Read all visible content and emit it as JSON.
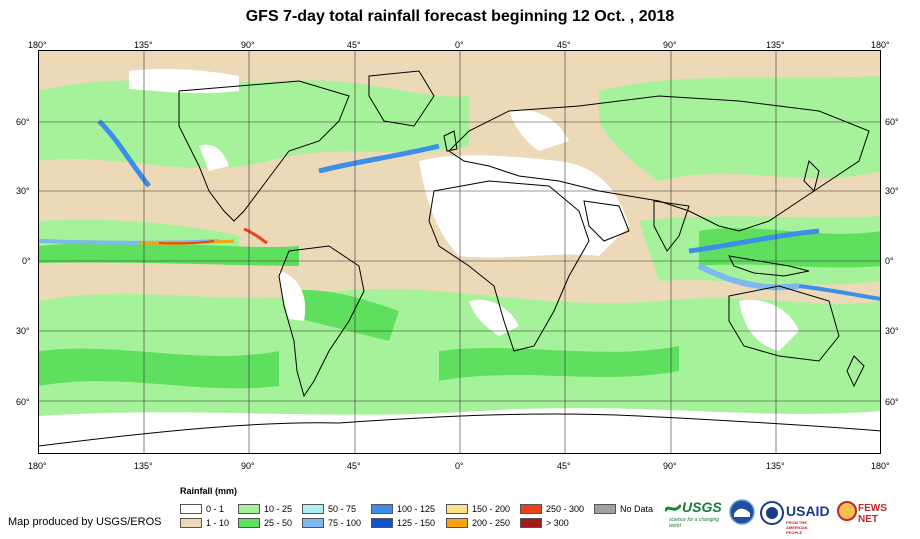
{
  "title": "GFS 7-day total rainfall forecast beginning 12 Oct. , 2018",
  "top_lon_labels": [
    "180°",
    "135°",
    "90°",
    "45°",
    "0°",
    "45°",
    "90°",
    "135°",
    "180°"
  ],
  "bottom_lon_labels": [
    "180°",
    "135°",
    "90°",
    "45°",
    "0°",
    "45°",
    "90°",
    "135°",
    "180°"
  ],
  "lat_labels": [
    "60°",
    "30°",
    "0°",
    "30°",
    "60°"
  ],
  "legend": {
    "title": "Rainfall (mm)",
    "items": [
      {
        "label": "0 - 1",
        "color": "#ffffff"
      },
      {
        "label": "1 - 10",
        "color": "#ecd9b8"
      },
      {
        "label": "10 - 25",
        "color": "#a6f29a"
      },
      {
        "label": "25 - 50",
        "color": "#5ee05e"
      },
      {
        "label": "50 - 75",
        "color": "#aeeeee"
      },
      {
        "label": "75 - 100",
        "color": "#7db8f0"
      },
      {
        "label": "100 - 125",
        "color": "#3c8fe8"
      },
      {
        "label": "125 - 150",
        "color": "#1452c8"
      },
      {
        "label": "150 - 200",
        "color": "#fde389"
      },
      {
        "label": "200 - 250",
        "color": "#f5a40f"
      },
      {
        "label": "250 - 300",
        "color": "#f0401a"
      },
      {
        "label": "> 300",
        "color": "#a01818"
      },
      {
        "label": "No Data",
        "color": "#a0a0a0"
      }
    ]
  },
  "credit": "Map produced by USGS/EROS",
  "logos": {
    "usgs": "USGS",
    "usgs_tagline": "science for a changing world",
    "noaa": "NOAA",
    "usaid": "USAID",
    "usaid_tagline": "FROM THE AMERICAN PEOPLE",
    "fews": "FEWS NET"
  }
}
